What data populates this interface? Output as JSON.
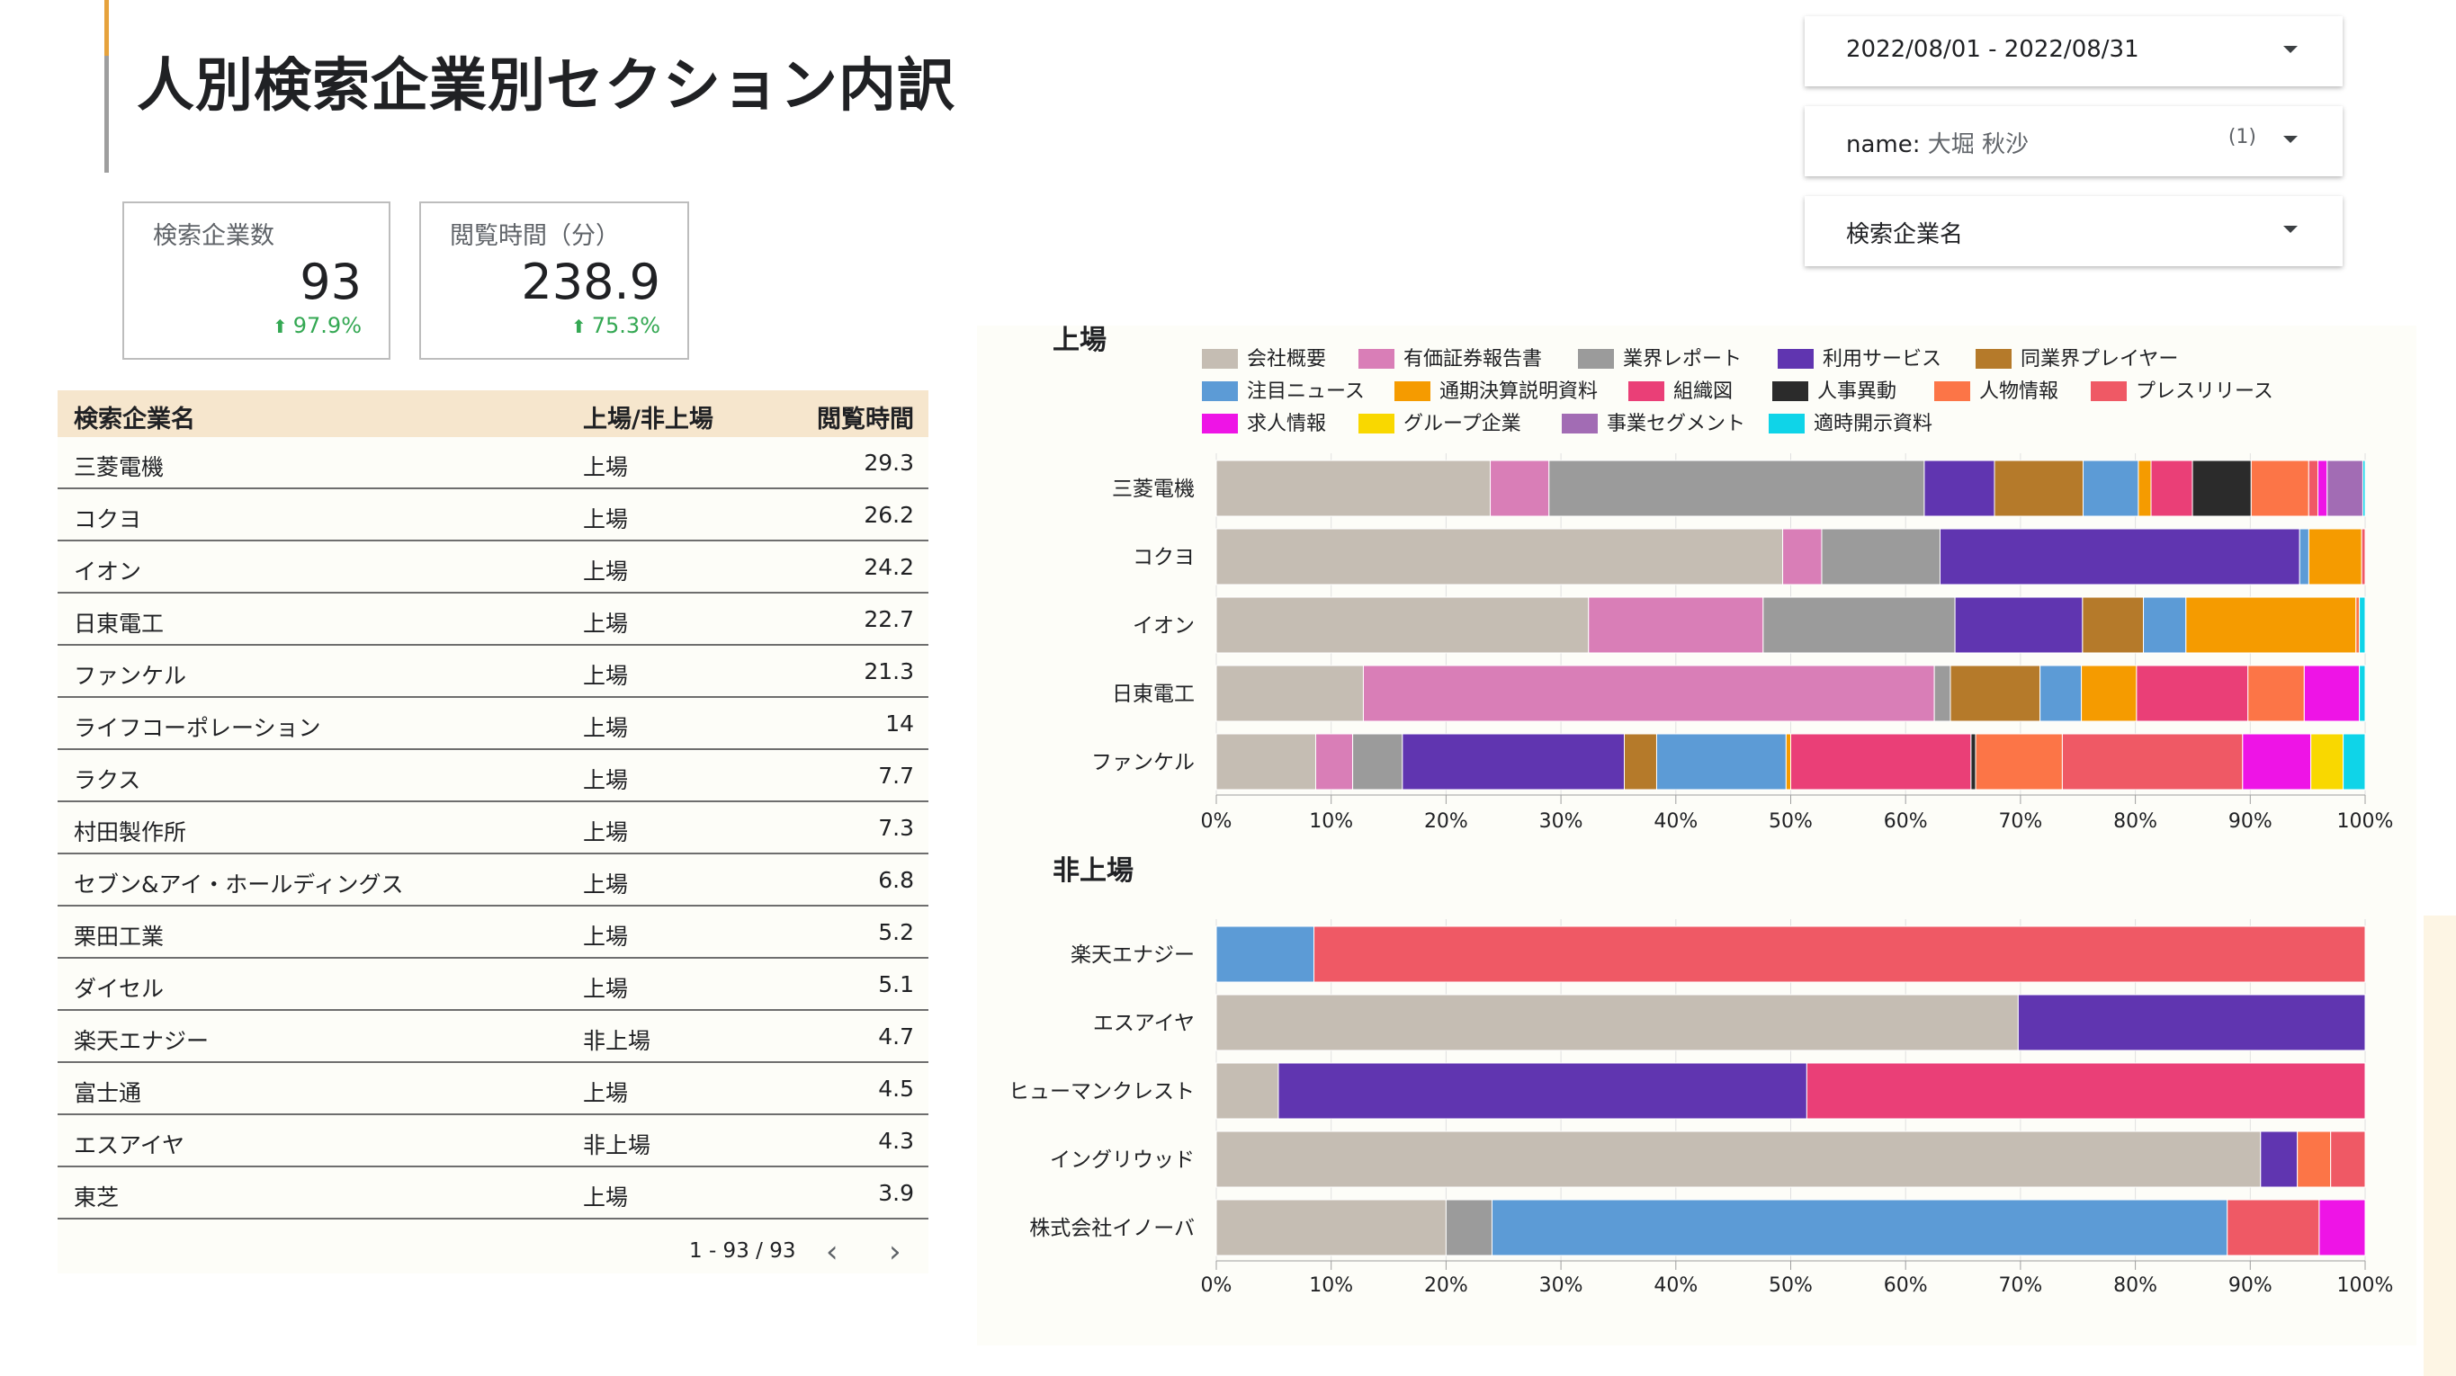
{
  "page": {
    "title": "人別検索企業別セクション内訳"
  },
  "scorecards": [
    {
      "label": "検索企業数",
      "value": "93",
      "delta": "97.9%"
    },
    {
      "label": "閲覧時間（分）",
      "value": "238.9",
      "delta": "75.3%"
    }
  ],
  "filters": {
    "date_range": "2022/08/01 - 2022/08/31",
    "name_label": "name:",
    "name_value": "大堀 秋沙",
    "name_count": "(1)",
    "company": "検索企業名"
  },
  "table": {
    "headers": [
      "検索企業名",
      "上場/非上場",
      "閲覧時間"
    ],
    "rows": [
      [
        "三菱電機",
        "上場",
        "29.3"
      ],
      [
        "コクヨ",
        "上場",
        "26.2"
      ],
      [
        "イオン",
        "上場",
        "24.2"
      ],
      [
        "日東電工",
        "上場",
        "22.7"
      ],
      [
        "ファンケル",
        "上場",
        "21.3"
      ],
      [
        "ライフコーポレーション",
        "上場",
        "14"
      ],
      [
        "ラクス",
        "上場",
        "7.7"
      ],
      [
        "村田製作所",
        "上場",
        "7.3"
      ],
      [
        "セブン&アイ・ホールディングス",
        "上場",
        "6.8"
      ],
      [
        "栗田工業",
        "上場",
        "5.2"
      ],
      [
        "ダイセル",
        "上場",
        "5.1"
      ],
      [
        "楽天エナジー",
        "非上場",
        "4.7"
      ],
      [
        "富士通",
        "上場",
        "4.5"
      ],
      [
        "エスアイヤ",
        "非上場",
        "4.3"
      ],
      [
        "東芝",
        "上場",
        "3.9"
      ]
    ],
    "pagination": "1 - 93 / 93"
  },
  "colors": {
    "会社概要": "#c5bdb3",
    "有価証券報告書": "#d97eb7",
    "業界レポート": "#9b9b9b",
    "利用サービス": "#6035b0",
    "同業界プレイヤー": "#b57a2a",
    "注目ニュース": "#5c9bd6",
    "通期決算説明資料": "#f59b00",
    "組織図": "#ea3f77",
    "人事異動": "#2b2b2b",
    "人物情報": "#fc7547",
    "プレスリリース": "#ef5965",
    "求人情報": "#ee14e6",
    "グループ企業": "#f9d800",
    "事業セグメント": "#a26cb4",
    "適時開示資料": "#0fd4e8"
  },
  "chart_data": [
    {
      "type": "bar",
      "orientation": "horizontal",
      "stacked": "percent",
      "title": "上場",
      "legend_position": "top",
      "categories": [
        "三菱電機",
        "コクヨ",
        "イオン",
        "日東電工",
        "ファンケル"
      ],
      "xlim": [
        0,
        100
      ],
      "xticks": [
        "0%",
        "10%",
        "20%",
        "30%",
        "40%",
        "50%",
        "60%",
        "70%",
        "80%",
        "90%",
        "100%"
      ],
      "series": [
        {
          "name": "会社概要",
          "values": [
            23.8,
            49.3,
            32.4,
            12.8,
            8.6
          ]
        },
        {
          "name": "有価証券報告書",
          "values": [
            5.1,
            3.4,
            15.2,
            49.7,
            3.2
          ]
        },
        {
          "name": "業界レポート",
          "values": [
            32.6,
            10.3,
            16.7,
            1.4,
            4.3
          ]
        },
        {
          "name": "利用サービス",
          "values": [
            6.1,
            31.3,
            11.1,
            0,
            19.2
          ]
        },
        {
          "name": "同業界プレイヤー",
          "values": [
            7.7,
            0,
            5.3,
            7.8,
            2.8
          ]
        },
        {
          "name": "注目ニュース",
          "values": [
            4.8,
            0.8,
            3.7,
            3.6,
            11.2
          ]
        },
        {
          "name": "通期決算説明資料",
          "values": [
            1.1,
            4.6,
            14.8,
            4.8,
            0.4
          ]
        },
        {
          "name": "組織図",
          "values": [
            3.6,
            0,
            0,
            9.7,
            15.6
          ]
        },
        {
          "name": "人事異動",
          "values": [
            5.1,
            0,
            0,
            0,
            0.4
          ]
        },
        {
          "name": "人物情報",
          "values": [
            5.0,
            0,
            0.3,
            4.9,
            7.5
          ]
        },
        {
          "name": "プレスリリース",
          "values": [
            0.8,
            0.3,
            0,
            0,
            15.6
          ]
        },
        {
          "name": "求人情報",
          "values": [
            0.8,
            0,
            0,
            4.8,
            5.9
          ]
        },
        {
          "name": "グループ企業",
          "values": [
            0,
            0,
            0,
            0,
            2.8
          ]
        },
        {
          "name": "事業セグメント",
          "values": [
            3.1,
            0,
            0,
            0,
            0
          ]
        },
        {
          "name": "適時開示資料",
          "values": [
            0.2,
            0,
            0.5,
            0.5,
            1.9
          ]
        }
      ]
    },
    {
      "type": "bar",
      "orientation": "horizontal",
      "stacked": "percent",
      "title": "非上場",
      "categories": [
        "楽天エナジー",
        "エスアイヤ",
        "ヒューマンクレスト",
        "イングリウッド",
        "株式会社イノーバ"
      ],
      "xlim": [
        0,
        100
      ],
      "xticks": [
        "0%",
        "10%",
        "20%",
        "30%",
        "40%",
        "50%",
        "60%",
        "70%",
        "80%",
        "90%",
        "100%"
      ],
      "series": [
        {
          "name": "会社概要",
          "values": [
            0,
            69.8,
            5.4,
            90.9,
            20.0
          ]
        },
        {
          "name": "業界レポート",
          "values": [
            0,
            0,
            0,
            0,
            4.0
          ]
        },
        {
          "name": "利用サービス",
          "values": [
            0,
            30.2,
            46.0,
            3.2,
            0
          ]
        },
        {
          "name": "注目ニュース",
          "values": [
            8.5,
            0,
            0,
            0,
            64.0
          ]
        },
        {
          "name": "組織図",
          "values": [
            0,
            0,
            48.6,
            0,
            0
          ]
        },
        {
          "name": "人物情報",
          "values": [
            0,
            0,
            0,
            2.9,
            0
          ]
        },
        {
          "name": "プレスリリース",
          "values": [
            91.5,
            0,
            0,
            3.0,
            8.0
          ]
        },
        {
          "name": "求人情報",
          "values": [
            0,
            0,
            0,
            0,
            4.0
          ]
        }
      ]
    }
  ]
}
